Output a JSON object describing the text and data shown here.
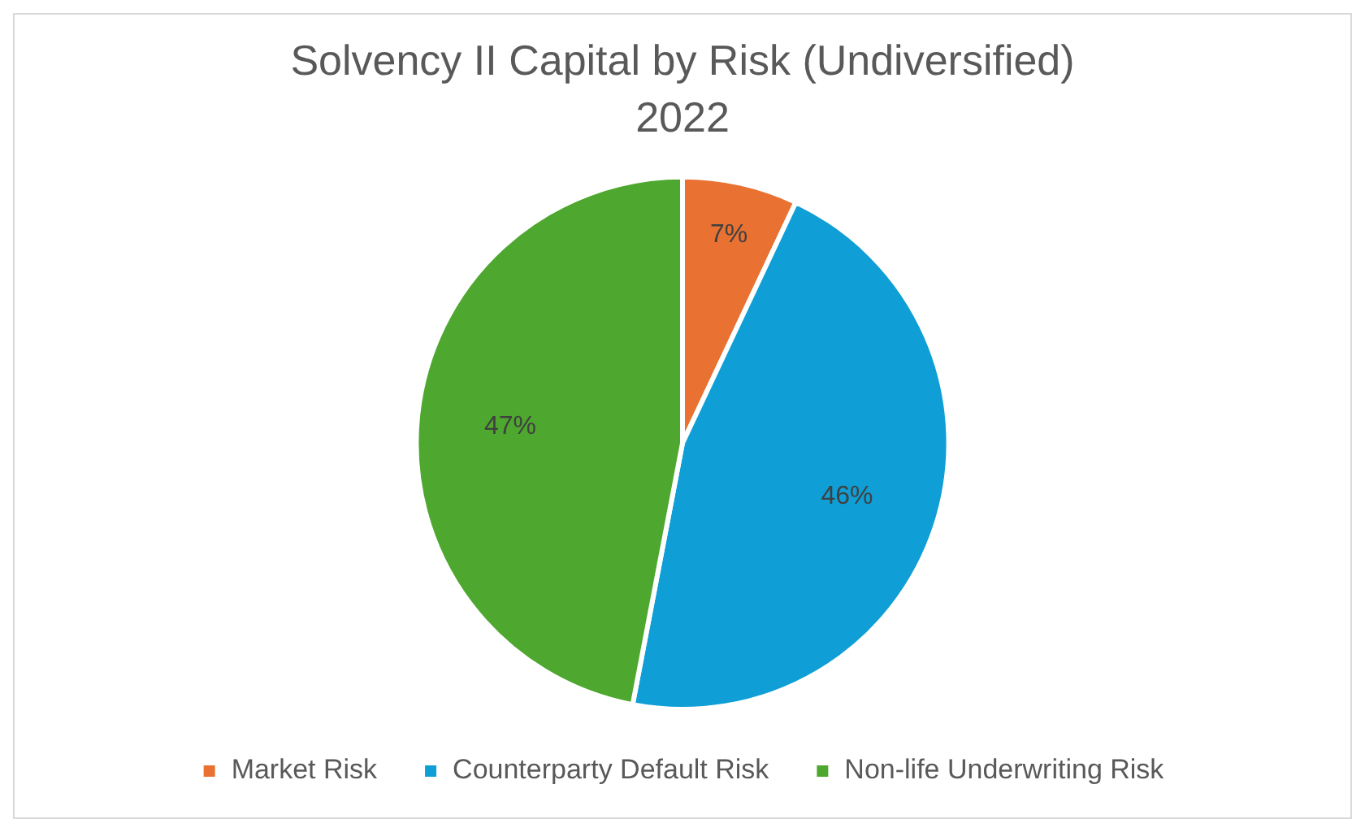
{
  "chart_data": {
    "type": "pie",
    "title": "Solvency II Capital by Risk (Undiversified)",
    "subtitle": "2022",
    "categories": [
      "Market Risk",
      "Counterparty Default Risk",
      "Non-life Underwriting Risk"
    ],
    "values": [
      7,
      46,
      47
    ],
    "colors": [
      "#e97132",
      "#0f9ed5",
      "#4ea72e"
    ],
    "value_labels": [
      "7%",
      "46%",
      "47%"
    ],
    "legend": "bottom"
  }
}
